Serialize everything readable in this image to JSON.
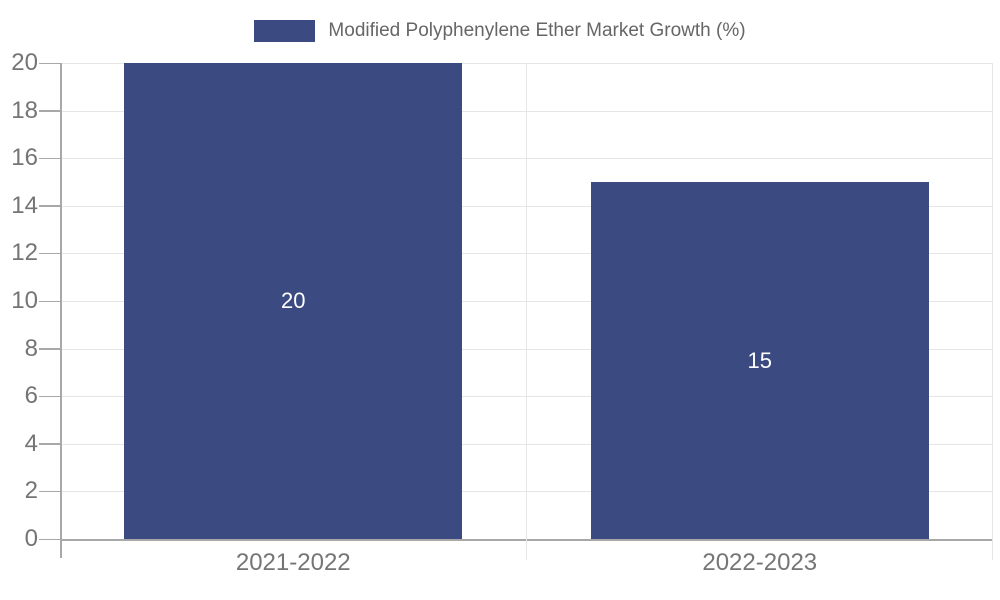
{
  "chart_data": {
    "type": "bar",
    "title": "Modified Polyphenylene Ether Market Growth (%)",
    "series_name": "Modified Polyphenylene Ether Market Growth (%)",
    "categories": [
      "2021-2022",
      "2022-2023"
    ],
    "values": [
      20,
      15
    ],
    "data_labels": [
      "20",
      "15"
    ],
    "xlabel": "",
    "ylabel": "",
    "ylim": [
      0,
      20
    ],
    "ytick_step": 2,
    "ytick_labels": [
      "0",
      "2",
      "4",
      "6",
      "8",
      "10",
      "12",
      "14",
      "16",
      "18",
      "20"
    ],
    "grid": true,
    "legend_position": "top-center",
    "colors": {
      "bar": "#3b4b82",
      "value_label": "#ffffff",
      "axis_text": "#757575",
      "legend_text": "#666666",
      "gridline": "#e6e6e6",
      "axis_line": "#a8a8a8"
    }
  }
}
